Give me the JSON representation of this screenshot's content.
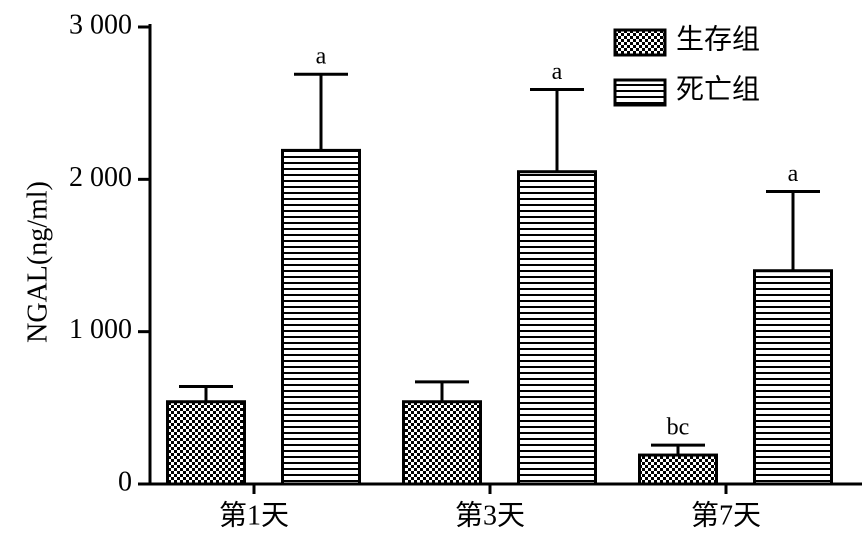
{
  "chart_data": {
    "type": "bar",
    "y_label": "NGAL(ng/ml)",
    "categories": [
      "第1天",
      "第3天",
      "第7天"
    ],
    "series": [
      {
        "name": "生存组",
        "pattern": "checker",
        "color": "#000000",
        "values": [
          540,
          540,
          190
        ],
        "errors": [
          100,
          130,
          65
        ],
        "annotations": [
          null,
          null,
          "bc"
        ]
      },
      {
        "name": "死亡组",
        "pattern": "hlines",
        "color": "#000000",
        "values": [
          2190,
          2050,
          1400
        ],
        "errors": [
          500,
          540,
          520
        ],
        "annotations": [
          "a",
          "a",
          "a"
        ]
      }
    ],
    "ylim": [
      0,
      3000
    ],
    "yticks": [
      0,
      {
        "value": 1000,
        "label": "1 000"
      },
      {
        "value": 2000,
        "label": "2 000"
      },
      {
        "value": 3000,
        "label": "3 000"
      }
    ],
    "legend": "top-right"
  }
}
